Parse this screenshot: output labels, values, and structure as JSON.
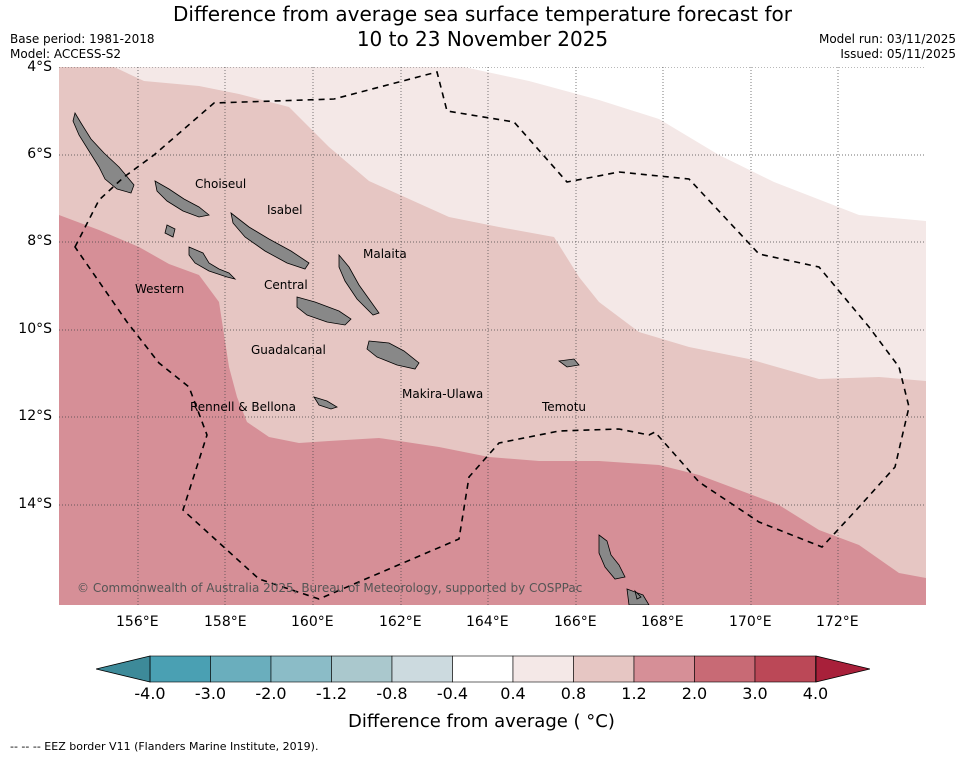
{
  "header": {
    "title_line1": "Difference from average sea surface temperature forecast for",
    "title_line2": "10 to 23 November 2025",
    "base_period": "Base period: 1981-2018",
    "model": "Model: ACCESS-S2",
    "model_run": "Model run: 03/11/2025",
    "issued": "Issued: 05/11/2025"
  },
  "map": {
    "latitude_labels": [
      "4°S",
      "6°S",
      "8°S",
      "10°S",
      "12°S",
      "14°S"
    ],
    "longitude_labels": [
      "156°E",
      "158°E",
      "160°E",
      "162°E",
      "164°E",
      "166°E",
      "168°E",
      "170°E",
      "172°E"
    ],
    "regions": [
      "Choiseul",
      "Isabel",
      "Malaita",
      "Western",
      "Central",
      "Guadalcanal",
      "Rennell & Bellona",
      "Makira-Ulawa",
      "Temotu"
    ],
    "copyright": "© Commonwealth of Australia 2025, Bureau of Meteorology, supported by COSPPac",
    "colors": {
      "band_04_08": "#f4e8e7",
      "band_08_12": "#e6c6c3",
      "band_12_20": "#d68f97",
      "land": "#888888",
      "eez_border": "#000000"
    }
  },
  "colorbar": {
    "ticks": [
      "-4.0",
      "-3.0",
      "-2.0",
      "-1.2",
      "-0.8",
      "-0.4",
      "0.4",
      "0.8",
      "1.2",
      "2.0",
      "3.0",
      "4.0"
    ],
    "segment_colors": [
      "#4aa0b3",
      "#6aaebd",
      "#8bbcc7",
      "#aac8cd",
      "#ccdadf",
      "#ffffff",
      "#f4e8e7",
      "#e6c6c3",
      "#d68f97",
      "#c86a75",
      "#bb4857"
    ],
    "low_extend_color": "#3d8a99",
    "high_extend_color": "#a8203a",
    "label": "Difference from average ( °C)"
  },
  "footnote": "--  --  -- EEZ border V11 (Flanders Marine Institute, 2019)."
}
